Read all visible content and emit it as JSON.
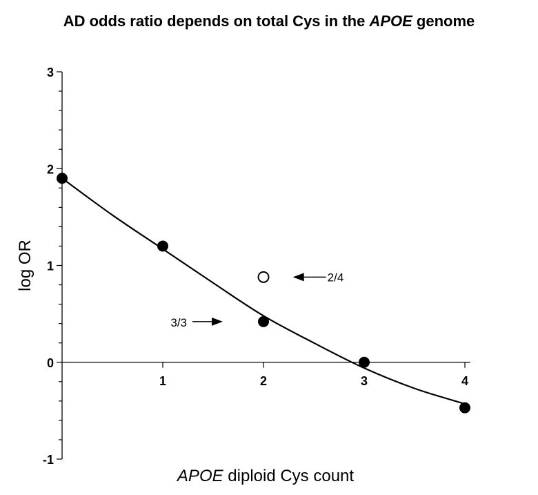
{
  "chart_data": {
    "type": "scatter",
    "title_parts": [
      {
        "text": "AD odds ratio depends on total Cys in the ",
        "italic": false
      },
      {
        "text": "APOE",
        "italic": true
      },
      {
        "text": " genome",
        "italic": false
      }
    ],
    "xlabel_parts": [
      {
        "text": "APOE",
        "italic": true
      },
      {
        "text": " diploid Cys count",
        "italic": false
      }
    ],
    "ylabel": "log OR",
    "xlim": [
      0,
      4
    ],
    "ylim": [
      -1,
      3
    ],
    "x_ticks": [
      1,
      2,
      3,
      4
    ],
    "y_ticks": [
      -1,
      0,
      1,
      2,
      3
    ],
    "grid": false,
    "series": [
      {
        "marker": "filled-circle",
        "points": [
          {
            "x": 0,
            "y": 1.9
          },
          {
            "x": 1,
            "y": 1.2
          },
          {
            "x": 2,
            "y": 0.42
          },
          {
            "x": 3,
            "y": 0.0
          },
          {
            "x": 4,
            "y": -0.47
          }
        ]
      },
      {
        "marker": "open-circle",
        "points": [
          {
            "x": 2,
            "y": 0.88
          }
        ]
      }
    ],
    "fit_curve": {
      "points": [
        {
          "x": 0,
          "y": 1.9
        },
        {
          "x": 0.5,
          "y": 1.52
        },
        {
          "x": 1,
          "y": 1.17
        },
        {
          "x": 1.5,
          "y": 0.82
        },
        {
          "x": 2,
          "y": 0.48
        },
        {
          "x": 2.5,
          "y": 0.2
        },
        {
          "x": 3,
          "y": -0.06
        },
        {
          "x": 3.5,
          "y": -0.27
        },
        {
          "x": 4,
          "y": -0.43
        }
      ]
    },
    "annotations": [
      {
        "text": "2/4",
        "x": 2.58,
        "y": 0.88,
        "arrow_direction": "left"
      },
      {
        "text": "3/3",
        "x": 1.5,
        "y": 0.42,
        "arrow_direction": "right"
      }
    ]
  }
}
